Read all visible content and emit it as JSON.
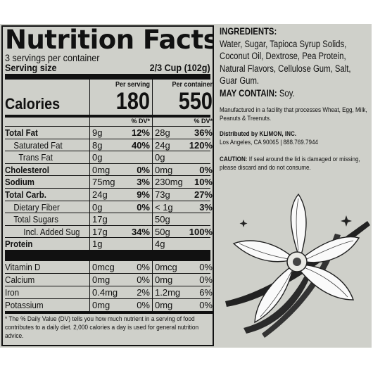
{
  "nutrition": {
    "title": "Nutrition Facts",
    "servings_per_container": "3 servings per container",
    "serving_size_label": "Serving size",
    "serving_size_value": "2/3 Cup (102g)",
    "per_serving_label": "Per serving",
    "per_container_label": "Per container",
    "calories_label": "Calories",
    "calories_serving": "180",
    "calories_container": "550",
    "dv_label": "% DV*",
    "rows": [
      {
        "label": "Total Fat",
        "a1": "9g",
        "p1": "12%",
        "a2": "28g",
        "p2": "36%"
      },
      {
        "label": "Saturated Fat",
        "a1": "8g",
        "p1": "40%",
        "a2": "24g",
        "p2": "120%"
      },
      {
        "label": "Trans Fat",
        "a1": "0g",
        "p1": "",
        "a2": "0g",
        "p2": ""
      },
      {
        "label": "Cholesterol",
        "a1": "0mg",
        "p1": "0%",
        "a2": "0mg",
        "p2": "0%"
      },
      {
        "label": "Sodium",
        "a1": "75mg",
        "p1": "3%",
        "a2": "230mg",
        "p2": "10%"
      },
      {
        "label": "Total Carb.",
        "a1": "24g",
        "p1": "9%",
        "a2": "73g",
        "p2": "27%"
      },
      {
        "label": "Dietary Fiber",
        "a1": "0g",
        "p1": "0%",
        "a2": "< 1g",
        "p2": "3%"
      },
      {
        "label": "Total Sugars",
        "a1": "17g",
        "p1": "",
        "a2": "50g",
        "p2": ""
      },
      {
        "label": "Incl. Added Sugars",
        "a1": "17g",
        "p1": "34%",
        "a2": "50g",
        "p2": "100%"
      },
      {
        "label": "Protein",
        "a1": "1g",
        "p1": "",
        "a2": "4g",
        "p2": ""
      }
    ],
    "vitamins": [
      {
        "label": "Vitamin D",
        "a1": "0mcg",
        "p1": "0%",
        "a2": "0mcg",
        "p2": "0%"
      },
      {
        "label": "Calcium",
        "a1": "0mg",
        "p1": "0%",
        "a2": "0mg",
        "p2": "0%"
      },
      {
        "label": "Iron",
        "a1": "0.4mg",
        "p1": "2%",
        "a2": "1.2mg",
        "p2": "6%"
      },
      {
        "label": "Potassium",
        "a1": "0mg",
        "p1": "0%",
        "a2": "0mg",
        "p2": "0%"
      }
    ],
    "footnote": "* The % Daily Value (DV) tells you how much nutrient in a serving of food contributes to a daily diet. 2,000 calories a day is used for general nutrition advice."
  },
  "ingredients": {
    "heading": "INGREDIENTS:",
    "text": "Water, Sugar, Tapioca Syrup Solids, Coconut Oil, Dextrose, Pea Protein, Natural Flavors, Cellulose Gum, Salt, Guar Gum.",
    "may_contain_label": "MAY CONTAIN:",
    "may_contain_value": "Soy.",
    "facility": "Manufactured in a facility that processes Wheat, Egg, Milk, Peanuts & Treenuts.",
    "distributed_by": "Distributed by KLIMON, INC.",
    "address": "Los Angeles, CA 90065 | 888.769.7944",
    "caution_label": "CAUTION:",
    "caution_text": "If seal around the lid is damaged or missing, please discard and do not consume."
  },
  "illustration_icon": "vanilla-flower-icon"
}
